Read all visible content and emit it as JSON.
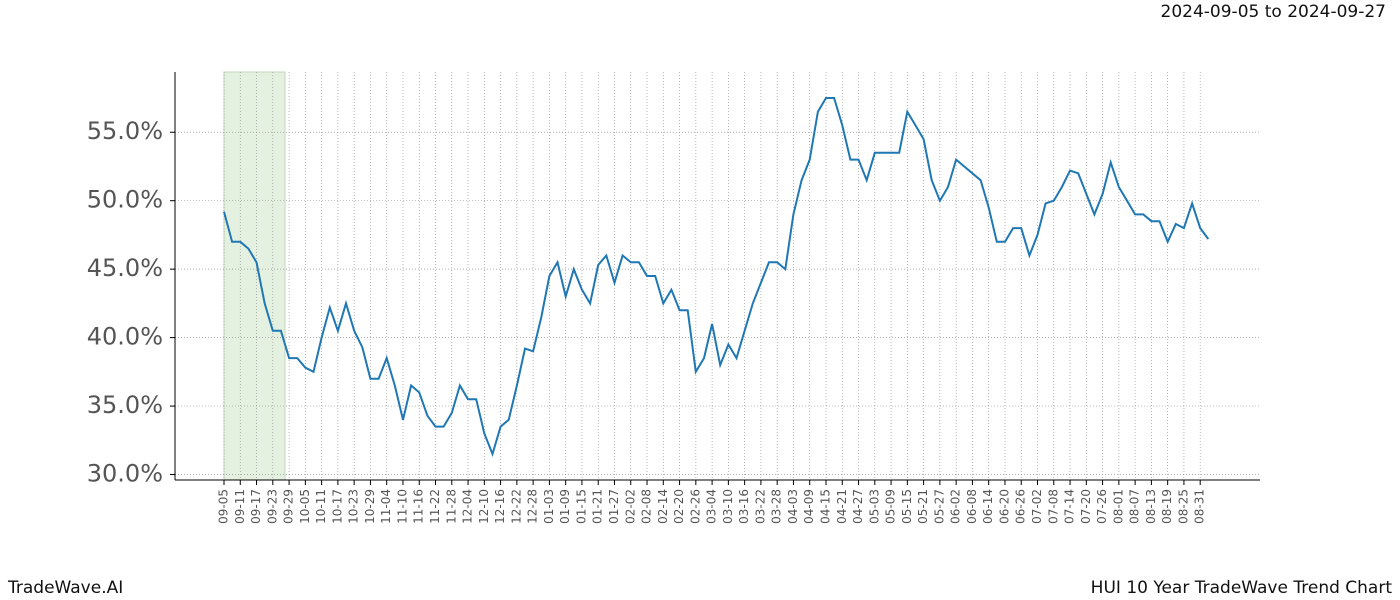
{
  "chart_data": {
    "type": "line",
    "title": "HUI 10 Year TradeWave Trend Chart",
    "subtitle": "2024-09-05 to 2024-09-27",
    "brand": "TradeWave.AI",
    "color": "#1f77b4",
    "grid": true,
    "categories": [
      "09-05",
      null,
      "09-11",
      null,
      "09-17",
      null,
      "09-23",
      null,
      "09-29",
      null,
      "10-05",
      null,
      "10-11",
      null,
      "10-17",
      null,
      "10-23",
      null,
      "10-29",
      null,
      "11-04",
      null,
      "11-10",
      null,
      "11-16",
      null,
      "11-22",
      null,
      "11-28",
      null,
      "12-04",
      null,
      "12-10",
      null,
      "12-16",
      null,
      "12-22",
      null,
      "12-28",
      null,
      "01-03",
      null,
      "01-09",
      null,
      "01-15",
      null,
      "01-21",
      null,
      "01-27",
      null,
      "02-02",
      null,
      "02-08",
      null,
      "02-14",
      null,
      "02-20",
      null,
      "02-26",
      null,
      "03-04",
      null,
      "03-10",
      null,
      "03-16",
      null,
      "03-22",
      null,
      "03-28",
      null,
      "04-03",
      null,
      "04-09",
      null,
      "04-15",
      null,
      "04-21",
      null,
      "04-27",
      null,
      "05-03",
      null,
      "05-09",
      null,
      "05-15",
      null,
      "05-21",
      null,
      "05-27",
      null,
      "06-02",
      null,
      "06-08",
      null,
      "06-14",
      null,
      "06-20",
      null,
      "06-26",
      null,
      "07-02",
      null,
      "07-08",
      null,
      "07-14",
      null,
      "07-20",
      null,
      "07-26",
      null,
      "08-01",
      null,
      "08-07",
      null,
      "08-13",
      null,
      "08-19",
      null,
      "08-25",
      null,
      "08-31",
      null
    ],
    "values": [
      49.2,
      47.0,
      47.0,
      46.5,
      45.5,
      42.5,
      40.5,
      40.5,
      38.5,
      38.5,
      37.8,
      37.5,
      40.0,
      42.2,
      40.5,
      42.5,
      40.5,
      39.3,
      37.0,
      37.0,
      38.5,
      36.5,
      34.0,
      36.5,
      36.0,
      34.3,
      33.5,
      33.5,
      34.5,
      36.5,
      35.5,
      35.5,
      33.0,
      31.5,
      33.5,
      34.0,
      36.5,
      39.2,
      39.0,
      41.5,
      44.5,
      45.5,
      43.0,
      45.0,
      43.5,
      42.5,
      45.3,
      46.0,
      44.0,
      46.0,
      45.5,
      45.5,
      44.5,
      44.5,
      42.5,
      43.5,
      42.0,
      42.0,
      37.5,
      38.5,
      41.0,
      38.0,
      39.5,
      38.5,
      40.5,
      42.5,
      44.0,
      45.5,
      45.5,
      45.0,
      49.0,
      51.5,
      53.0,
      56.5,
      57.5,
      57.5,
      55.5,
      53.0,
      53.0,
      51.5,
      53.5,
      53.5,
      53.5,
      53.5,
      56.5,
      55.5,
      54.5,
      51.5,
      50.0,
      51.0,
      53.0,
      52.5,
      52.0,
      51.5,
      49.5,
      47.0,
      47.0,
      48.0,
      48.0,
      46.0,
      47.5,
      49.8,
      50.0,
      51.0,
      52.2,
      52.0,
      50.5,
      49.0,
      50.5,
      52.8,
      51.0,
      50.0,
      49.0,
      49.0,
      48.5,
      48.5,
      47.0,
      48.3,
      48.0,
      49.8,
      48.0,
      47.2
    ],
    "ylim": [
      29.6,
      59.4
    ],
    "yticks": [
      {
        "value": 30,
        "label": "30.0%"
      },
      {
        "value": 35,
        "label": "35.0%"
      },
      {
        "value": 40,
        "label": "40.0%"
      },
      {
        "value": 45,
        "label": "45.0%"
      },
      {
        "value": 50,
        "label": "50.0%"
      },
      {
        "value": 55,
        "label": "55.0%"
      }
    ]
  }
}
